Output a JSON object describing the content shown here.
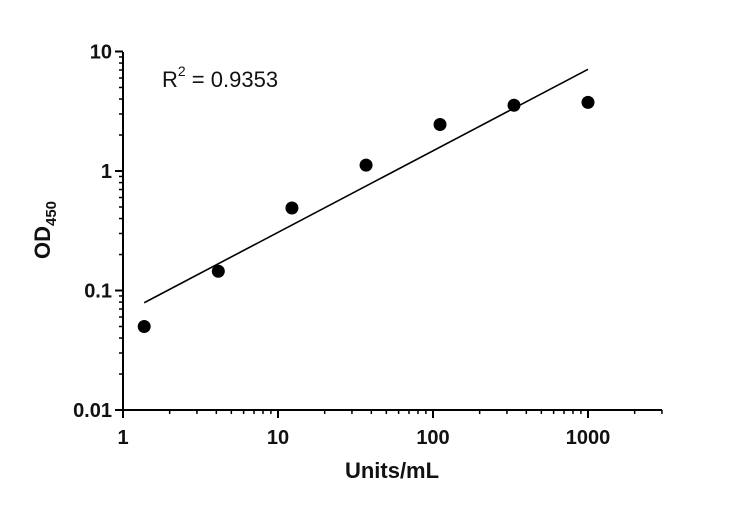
{
  "chart_data": {
    "type": "scatter",
    "title": "",
    "xlabel": "Units/mL",
    "ylabel_main": "OD",
    "ylabel_sub": "450",
    "xscale": "log",
    "yscale": "log",
    "xlim": [
      1,
      3000
    ],
    "ylim": [
      0.01,
      10
    ],
    "xticks": [
      1,
      10,
      100,
      1000
    ],
    "xtick_labels": [
      "1",
      "10",
      "100",
      "1000"
    ],
    "yticks": [
      0.01,
      0.1,
      1,
      10
    ],
    "ytick_labels": [
      "0.01",
      "0.1",
      "1",
      "10"
    ],
    "grid": false,
    "legend": "none",
    "points": [
      {
        "x": 1.37,
        "y": 0.05
      },
      {
        "x": 4.12,
        "y": 0.145
      },
      {
        "x": 12.3,
        "y": 0.49
      },
      {
        "x": 37,
        "y": 1.12
      },
      {
        "x": 111,
        "y": 2.45
      },
      {
        "x": 333,
        "y": 3.55
      },
      {
        "x": 1000,
        "y": 3.75
      }
    ],
    "fit_line": {
      "x": [
        1.37,
        1000
      ],
      "y": [
        0.079,
        7.1
      ]
    },
    "annotation": {
      "base": "R",
      "sup": "2",
      "rest": " = 0.9353"
    },
    "colors": {
      "points": "#000000",
      "line": "#000000",
      "axis": "#000000"
    }
  }
}
